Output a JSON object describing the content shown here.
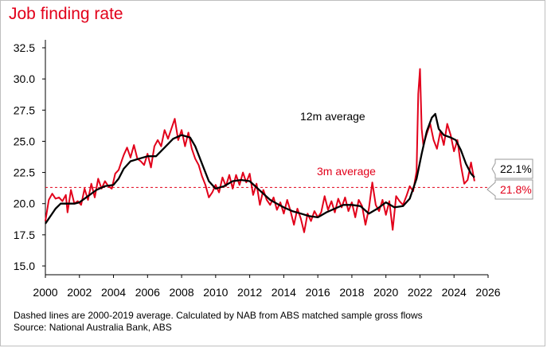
{
  "chart_data": {
    "type": "line",
    "title": "Job finding rate",
    "xlim": [
      2000,
      2026
    ],
    "ylim": [
      15.0,
      32.5
    ],
    "x_ticks": [
      "2000",
      "2002",
      "2004",
      "2006",
      "2008",
      "2010",
      "2012",
      "2014",
      "2016",
      "2018",
      "2020",
      "2022",
      "2024",
      "2026"
    ],
    "y_ticks": [
      "15.0",
      "17.5",
      "20.0",
      "22.5",
      "25.0",
      "27.5",
      "30.0",
      "32.5"
    ],
    "grid": false,
    "reference_line": {
      "y": 21.3,
      "style": "dashed",
      "color": "#e2001a"
    },
    "annotations": {
      "series_12m": "12m average",
      "series_3m": "3m average",
      "end_value_12m": "22.1%",
      "end_value_3m": "21.8%"
    },
    "colors": {
      "series_3m": "#e2001a",
      "series_12m": "#000000",
      "title": "#e2001a"
    },
    "series": [
      {
        "name": "3m average",
        "color": "#e2001a",
        "points": [
          [
            2000.0,
            18.6
          ],
          [
            2000.2,
            20.3
          ],
          [
            2000.4,
            20.8
          ],
          [
            2000.6,
            20.4
          ],
          [
            2000.8,
            20.5
          ],
          [
            2001.0,
            20.2
          ],
          [
            2001.2,
            20.7
          ],
          [
            2001.3,
            19.3
          ],
          [
            2001.5,
            21.1
          ],
          [
            2001.7,
            20.0
          ],
          [
            2001.9,
            20.2
          ],
          [
            2002.1,
            19.9
          ],
          [
            2002.3,
            21.2
          ],
          [
            2002.5,
            20.3
          ],
          [
            2002.7,
            21.6
          ],
          [
            2002.9,
            20.5
          ],
          [
            2003.1,
            22.0
          ],
          [
            2003.3,
            21.2
          ],
          [
            2003.5,
            21.8
          ],
          [
            2003.7,
            21.4
          ],
          [
            2003.9,
            21.2
          ],
          [
            2004.1,
            22.4
          ],
          [
            2004.3,
            22.7
          ],
          [
            2004.5,
            23.5
          ],
          [
            2004.6,
            23.9
          ],
          [
            2004.8,
            24.5
          ],
          [
            2005.0,
            23.7
          ],
          [
            2005.2,
            24.7
          ],
          [
            2005.4,
            23.6
          ],
          [
            2005.6,
            23.4
          ],
          [
            2005.8,
            23.1
          ],
          [
            2006.0,
            24.0
          ],
          [
            2006.2,
            22.9
          ],
          [
            2006.4,
            24.6
          ],
          [
            2006.6,
            25.1
          ],
          [
            2006.8,
            24.6
          ],
          [
            2007.0,
            25.9
          ],
          [
            2007.2,
            25.2
          ],
          [
            2007.4,
            26.0
          ],
          [
            2007.6,
            26.8
          ],
          [
            2007.8,
            25.1
          ],
          [
            2008.0,
            25.9
          ],
          [
            2008.2,
            24.6
          ],
          [
            2008.4,
            25.7
          ],
          [
            2008.6,
            24.4
          ],
          [
            2008.8,
            23.6
          ],
          [
            2009.0,
            23.1
          ],
          [
            2009.2,
            22.2
          ],
          [
            2009.4,
            21.5
          ],
          [
            2009.6,
            20.5
          ],
          [
            2009.8,
            20.9
          ],
          [
            2010.0,
            21.5
          ],
          [
            2010.2,
            20.9
          ],
          [
            2010.4,
            22.1
          ],
          [
            2010.6,
            21.4
          ],
          [
            2010.8,
            22.3
          ],
          [
            2011.0,
            21.2
          ],
          [
            2011.2,
            22.3
          ],
          [
            2011.4,
            21.5
          ],
          [
            2011.6,
            22.5
          ],
          [
            2011.8,
            21.7
          ],
          [
            2012.0,
            22.4
          ],
          [
            2012.2,
            20.7
          ],
          [
            2012.4,
            21.6
          ],
          [
            2012.6,
            19.9
          ],
          [
            2012.8,
            21.1
          ],
          [
            2013.0,
            20.3
          ],
          [
            2013.2,
            19.9
          ],
          [
            2013.4,
            20.5
          ],
          [
            2013.6,
            19.5
          ],
          [
            2013.8,
            20.1
          ],
          [
            2014.0,
            19.2
          ],
          [
            2014.2,
            20.3
          ],
          [
            2014.4,
            19.4
          ],
          [
            2014.6,
            18.3
          ],
          [
            2014.8,
            19.6
          ],
          [
            2015.0,
            18.8
          ],
          [
            2015.2,
            17.7
          ],
          [
            2015.4,
            19.2
          ],
          [
            2015.6,
            18.6
          ],
          [
            2015.8,
            19.4
          ],
          [
            2016.0,
            18.9
          ],
          [
            2016.2,
            19.3
          ],
          [
            2016.4,
            20.6
          ],
          [
            2016.6,
            19.5
          ],
          [
            2016.8,
            20.2
          ],
          [
            2017.0,
            19.3
          ],
          [
            2017.2,
            20.4
          ],
          [
            2017.4,
            19.7
          ],
          [
            2017.6,
            20.5
          ],
          [
            2017.8,
            19.4
          ],
          [
            2018.0,
            20.1
          ],
          [
            2018.2,
            18.9
          ],
          [
            2018.4,
            20.3
          ],
          [
            2018.6,
            19.8
          ],
          [
            2018.8,
            18.3
          ],
          [
            2019.0,
            19.6
          ],
          [
            2019.2,
            21.7
          ],
          [
            2019.4,
            19.9
          ],
          [
            2019.6,
            19.4
          ],
          [
            2019.8,
            20.3
          ],
          [
            2020.0,
            19.1
          ],
          [
            2020.2,
            20.2
          ],
          [
            2020.4,
            17.9
          ],
          [
            2020.6,
            20.6
          ],
          [
            2020.8,
            20.2
          ],
          [
            2021.0,
            19.9
          ],
          [
            2021.2,
            20.6
          ],
          [
            2021.4,
            21.4
          ],
          [
            2021.6,
            21.0
          ],
          [
            2021.8,
            22.6
          ],
          [
            2021.9,
            28.8
          ],
          [
            2022.0,
            30.8
          ],
          [
            2022.1,
            26.0
          ],
          [
            2022.2,
            24.7
          ],
          [
            2022.4,
            25.6
          ],
          [
            2022.6,
            26.4
          ],
          [
            2022.8,
            25.1
          ],
          [
            2023.0,
            24.4
          ],
          [
            2023.2,
            25.8
          ],
          [
            2023.4,
            24.7
          ],
          [
            2023.6,
            26.4
          ],
          [
            2023.8,
            25.5
          ],
          [
            2024.0,
            24.2
          ],
          [
            2024.2,
            25.1
          ],
          [
            2024.4,
            23.1
          ],
          [
            2024.6,
            21.6
          ],
          [
            2024.8,
            21.9
          ],
          [
            2025.0,
            23.3
          ],
          [
            2025.2,
            21.8
          ]
        ]
      },
      {
        "name": "12m average",
        "color": "#000000",
        "points": [
          [
            2000.0,
            18.4
          ],
          [
            2000.3,
            19.0
          ],
          [
            2000.6,
            19.6
          ],
          [
            2000.9,
            20.0
          ],
          [
            2001.3,
            20.0
          ],
          [
            2001.7,
            20.0
          ],
          [
            2002.0,
            20.1
          ],
          [
            2002.5,
            20.6
          ],
          [
            2003.0,
            21.1
          ],
          [
            2003.5,
            21.4
          ],
          [
            2004.0,
            21.5
          ],
          [
            2004.3,
            22.0
          ],
          [
            2004.6,
            22.8
          ],
          [
            2005.0,
            23.4
          ],
          [
            2005.5,
            23.6
          ],
          [
            2006.0,
            23.8
          ],
          [
            2006.5,
            23.8
          ],
          [
            2007.0,
            24.5
          ],
          [
            2007.5,
            25.2
          ],
          [
            2008.0,
            25.5
          ],
          [
            2008.5,
            25.3
          ],
          [
            2008.8,
            24.6
          ],
          [
            2009.2,
            23.2
          ],
          [
            2009.6,
            21.8
          ],
          [
            2010.0,
            21.2
          ],
          [
            2010.5,
            21.4
          ],
          [
            2011.0,
            21.8
          ],
          [
            2011.5,
            21.9
          ],
          [
            2012.0,
            21.8
          ],
          [
            2012.4,
            21.3
          ],
          [
            2012.8,
            20.8
          ],
          [
            2013.2,
            20.3
          ],
          [
            2013.6,
            20.0
          ],
          [
            2014.0,
            19.7
          ],
          [
            2014.5,
            19.4
          ],
          [
            2015.0,
            19.2
          ],
          [
            2015.5,
            19.0
          ],
          [
            2016.0,
            18.9
          ],
          [
            2016.5,
            19.3
          ],
          [
            2017.0,
            19.6
          ],
          [
            2017.5,
            19.9
          ],
          [
            2018.0,
            19.9
          ],
          [
            2018.5,
            19.8
          ],
          [
            2019.0,
            19.2
          ],
          [
            2019.5,
            19.6
          ],
          [
            2020.0,
            20.1
          ],
          [
            2020.5,
            19.7
          ],
          [
            2021.0,
            19.8
          ],
          [
            2021.4,
            20.4
          ],
          [
            2021.8,
            22.0
          ],
          [
            2022.1,
            24.0
          ],
          [
            2022.4,
            25.8
          ],
          [
            2022.7,
            26.9
          ],
          [
            2022.9,
            27.2
          ],
          [
            2023.1,
            26.0
          ],
          [
            2023.4,
            25.5
          ],
          [
            2023.8,
            25.3
          ],
          [
            2024.1,
            25.1
          ],
          [
            2024.4,
            24.3
          ],
          [
            2024.7,
            23.2
          ],
          [
            2025.0,
            22.4
          ],
          [
            2025.2,
            22.1
          ]
        ]
      }
    ]
  },
  "footnotes": {
    "line1": "Dashed lines are 2000-2019 average. Calculated by NAB from ABS matched sample gross flows",
    "line2": "Source: National Australia Bank, ABS"
  }
}
